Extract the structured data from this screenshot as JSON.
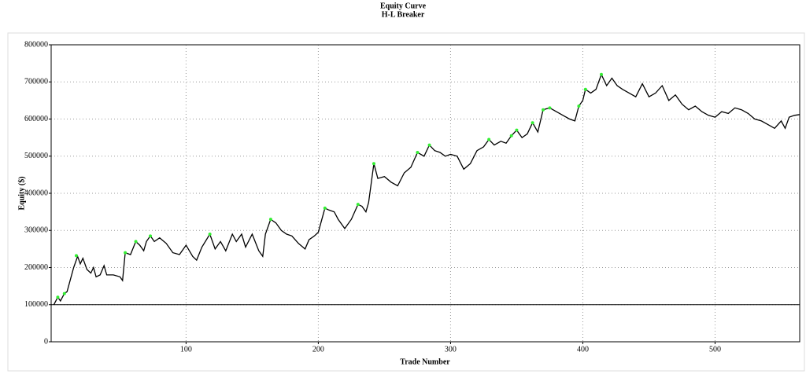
{
  "chart_data": {
    "type": "line",
    "title": "Equity Curve",
    "subtitle": "H-L Breaker",
    "x_label": "Trade Number",
    "y_label": "Equity ($)",
    "xlim": [
      -2,
      564
    ],
    "ylim": [
      0,
      800000
    ],
    "xticks": [
      100,
      200,
      300,
      400,
      500
    ],
    "yticks": [
      0,
      100000,
      200000,
      300000,
      400000,
      500000,
      600000,
      700000,
      800000
    ],
    "grid": true,
    "reference_line": 100000,
    "series": [
      {
        "color": "#000000",
        "x": [
          0,
          3,
          5,
          8,
          10,
          15,
          18,
          20,
          22,
          25,
          28,
          30,
          32,
          35,
          38,
          40,
          45,
          50,
          52,
          54,
          58,
          62,
          65,
          68,
          70,
          73,
          76,
          80,
          85,
          90,
          95,
          100,
          105,
          108,
          112,
          118,
          122,
          126,
          130,
          135,
          138,
          142,
          145,
          150,
          155,
          158,
          160,
          164,
          168,
          172,
          176,
          180,
          185,
          190,
          193,
          197,
          200,
          205,
          208,
          212,
          215,
          220,
          225,
          230,
          233,
          236,
          238,
          242,
          245,
          250,
          255,
          260,
          265,
          270,
          275,
          280,
          284,
          288,
          292,
          296,
          300,
          305,
          310,
          315,
          320,
          325,
          329,
          333,
          338,
          342,
          346,
          350,
          354,
          358,
          362,
          366,
          370,
          375,
          380,
          385,
          390,
          394,
          397,
          400,
          402,
          406,
          410,
          414,
          418,
          422,
          426,
          430,
          435,
          440,
          445,
          450,
          455,
          460,
          465,
          470,
          475,
          480,
          485,
          490,
          495,
          500,
          505,
          510,
          515,
          520,
          525,
          530,
          535,
          540,
          545,
          550,
          553,
          556,
          560,
          564
        ],
        "values": [
          100000,
          120000,
          110000,
          130000,
          135000,
          200000,
          230000,
          210000,
          225000,
          195000,
          185000,
          200000,
          175000,
          180000,
          205000,
          180000,
          180000,
          175000,
          165000,
          240000,
          235000,
          270000,
          260000,
          245000,
          270000,
          285000,
          270000,
          280000,
          265000,
          240000,
          235000,
          260000,
          230000,
          220000,
          255000,
          290000,
          250000,
          270000,
          245000,
          290000,
          270000,
          290000,
          255000,
          290000,
          245000,
          230000,
          290000,
          330000,
          320000,
          300000,
          290000,
          285000,
          265000,
          250000,
          275000,
          285000,
          295000,
          360000,
          355000,
          350000,
          330000,
          305000,
          330000,
          370000,
          365000,
          350000,
          375000,
          480000,
          440000,
          445000,
          430000,
          420000,
          455000,
          470000,
          510000,
          500000,
          530000,
          515000,
          510000,
          500000,
          505000,
          500000,
          465000,
          480000,
          515000,
          525000,
          545000,
          530000,
          540000,
          535000,
          555000,
          570000,
          550000,
          560000,
          590000,
          565000,
          625000,
          630000,
          620000,
          610000,
          600000,
          595000,
          635000,
          650000,
          680000,
          670000,
          680000,
          720000,
          690000,
          710000,
          690000,
          680000,
          670000,
          660000,
          695000,
          660000,
          670000,
          690000,
          650000,
          665000,
          640000,
          625000,
          635000,
          620000,
          610000,
          605000,
          620000,
          615000,
          630000,
          625000,
          615000,
          600000,
          595000,
          585000,
          575000,
          595000,
          575000,
          605000,
          610000,
          612000
        ]
      },
      {
        "type": "scatter",
        "color": "#33ee33",
        "x": [
          3,
          8,
          17,
          54,
          62,
          73,
          118,
          164,
          205,
          230,
          242,
          275,
          284,
          329,
          346,
          350,
          362,
          370,
          375,
          397,
          402,
          414
        ],
        "values": [
          120000,
          130000,
          232000,
          240000,
          270000,
          285000,
          290000,
          330000,
          360000,
          370000,
          480000,
          510000,
          530000,
          545000,
          555000,
          570000,
          590000,
          625000,
          630000,
          635000,
          680000,
          720000
        ]
      }
    ]
  }
}
